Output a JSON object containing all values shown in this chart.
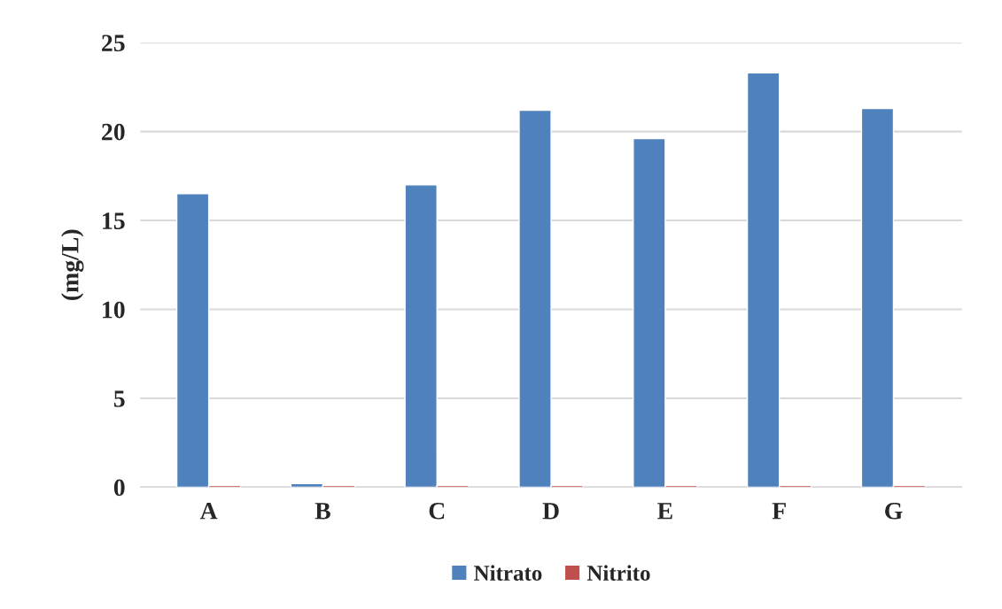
{
  "chart_data": {
    "type": "bar",
    "ylabel": "(mg/L)",
    "categories": [
      "A",
      "B",
      "C",
      "D",
      "E",
      "F",
      "G"
    ],
    "series": [
      {
        "name": "Nitrato",
        "color": "#4f81bd",
        "values": [
          16.5,
          0.2,
          17.0,
          21.2,
          19.6,
          23.3,
          21.3
        ]
      },
      {
        "name": "Nitrito",
        "color": "#c0504d",
        "values": [
          0.1,
          0.1,
          0.1,
          0.1,
          0.1,
          0.1,
          0.1
        ]
      }
    ],
    "ylim": [
      0,
      25
    ],
    "yticks": [
      0,
      5,
      10,
      15,
      20,
      25
    ],
    "grid": "y",
    "legend": "bottom"
  }
}
